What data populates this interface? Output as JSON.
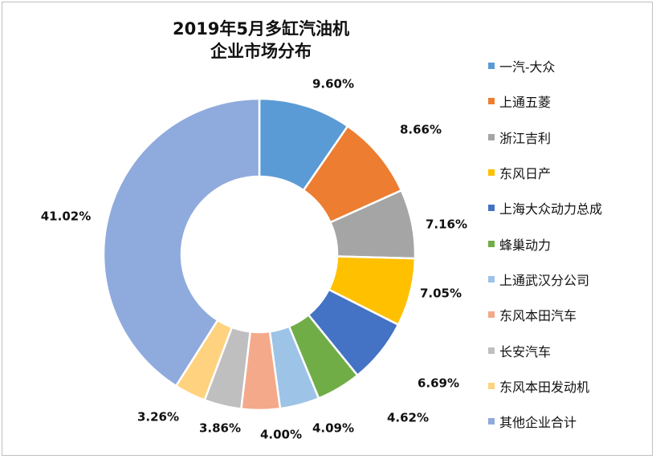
{
  "chart_data": {
    "type": "pie",
    "title_lines": [
      "2019年5月多缸汽油机",
      "企业市场分布"
    ],
    "legend_position": "right",
    "slices": [
      {
        "name": "一汽-大众",
        "value": 9.6,
        "label": "9.60%",
        "color": "#5B9BD5"
      },
      {
        "name": "上通五菱",
        "value": 8.66,
        "label": "8.66%",
        "color": "#ED7D31"
      },
      {
        "name": "浙江吉利",
        "value": 7.16,
        "label": "7.16%",
        "color": "#A5A5A5"
      },
      {
        "name": "东风日产",
        "value": 7.05,
        "label": "7.05%",
        "color": "#FFC000"
      },
      {
        "name": "上海大众动力总成",
        "value": 6.69,
        "label": "6.69%",
        "color": "#4472C4"
      },
      {
        "name": "蜂巢动力",
        "value": 4.62,
        "label": "4.62%",
        "color": "#70AD47"
      },
      {
        "name": "上通武汉分公司",
        "value": 4.09,
        "label": "4.09%",
        "color": "#9DC3E6"
      },
      {
        "name": "东风本田汽车",
        "value": 4.0,
        "label": "4.00%",
        "color": "#F4A98A"
      },
      {
        "name": "长安汽车",
        "value": 3.86,
        "label": "3.86%",
        "color": "#BFBFBF"
      },
      {
        "name": "东风本田发动机",
        "value": 3.26,
        "label": "3.26%",
        "color": "#FFD27F"
      },
      {
        "name": "其他企业合计",
        "value": 41.02,
        "label": "41.02%",
        "color": "#8FAADC"
      }
    ]
  }
}
